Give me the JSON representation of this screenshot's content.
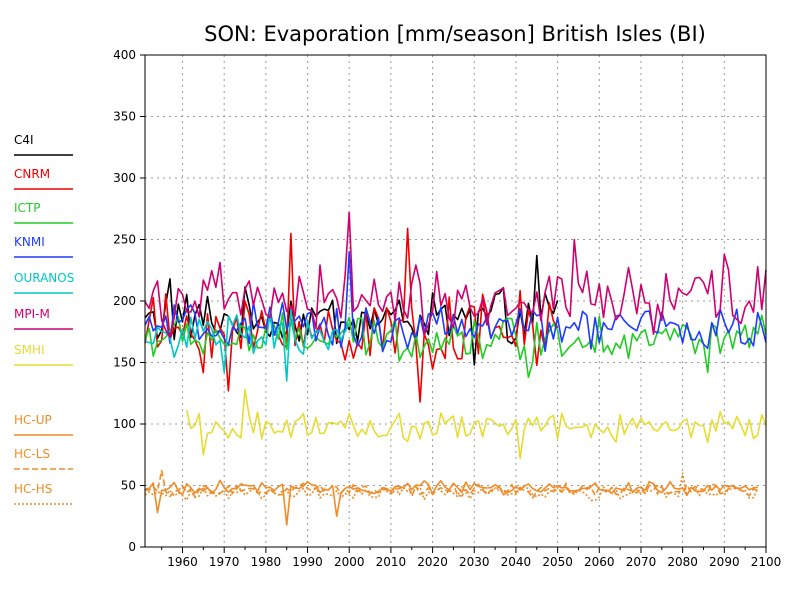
{
  "chart_data": {
    "type": "line",
    "title": "SON: Evaporation [mm/season] British Isles (BI)",
    "xlabel": "",
    "ylabel": "",
    "xlim": [
      1951,
      2100
    ],
    "ylim": [
      0,
      400
    ],
    "xticks": [
      1960,
      1970,
      1980,
      1990,
      2000,
      2010,
      2020,
      2030,
      2040,
      2050,
      2060,
      2070,
      2080,
      2090,
      2100
    ],
    "xtick_labels": [
      "1960",
      "1970",
      "1980",
      "1990",
      "2000",
      "2010",
      "2020",
      "2030",
      "2040",
      "2050",
      "2060",
      "2070",
      "2080",
      "2090",
      "2100"
    ],
    "yticks": [
      0,
      50,
      100,
      150,
      200,
      250,
      300,
      350,
      400
    ],
    "ytick_labels": [
      "0",
      "50",
      "100",
      "150",
      "200",
      "250",
      "300",
      "350",
      "400"
    ],
    "grid": true,
    "legend_position": "left",
    "series": [
      {
        "name": "C4I",
        "color": "#000000",
        "dash": "solid",
        "x_start": 1951,
        "x_end": 2050,
        "base": 185,
        "amp": 17,
        "spikes": {
          "1957": 218,
          "2030": 148,
          "2045": 237
        }
      },
      {
        "name": "CNRM",
        "color": "#ee0000",
        "dash": "solid",
        "x_start": 1951,
        "x_end": 2050,
        "base": 175,
        "amp": 22,
        "spikes": {
          "1971": 127,
          "1986": 255,
          "2017": 118,
          "2014": 259
        }
      },
      {
        "name": "ICTP",
        "color": "#22cc22",
        "dash": "solid",
        "x_start": 1951,
        "x_end": 2100,
        "base": 170,
        "amp": 14,
        "spikes": {
          "2043": 138,
          "2086": 142
        }
      },
      {
        "name": "KNMI",
        "color": "#1e3cff",
        "dash": "solid",
        "x_start": 1951,
        "x_end": 2100,
        "base": 178,
        "amp": 14,
        "spikes": {
          "2000": 240
        }
      },
      {
        "name": "OURANOS",
        "color": "#00c8c8",
        "dash": "solid",
        "x_start": 1951,
        "x_end": 2000,
        "base": 172,
        "amp": 14,
        "spikes": {
          "1985": 135,
          "1970": 142
        }
      },
      {
        "name": "MPI-M",
        "color": "#d0006f",
        "dash": "solid",
        "x_start": 1951,
        "x_end": 2100,
        "base": 200,
        "amp": 20,
        "spikes": {
          "2000": 272,
          "2054": 250,
          "2090": 238
        }
      },
      {
        "name": "SMHI",
        "color": "#e6dc32",
        "dash": "solid",
        "x_start": 1961,
        "x_end": 2100,
        "base": 98,
        "amp": 9,
        "spikes": {
          "1975": 128,
          "1965": 75,
          "2041": 72
        }
      },
      {
        "name": "HC-UP",
        "color": "#f08c28",
        "dash": "solid",
        "x_start": 1951,
        "x_end": 2098,
        "base": 48,
        "amp": 4,
        "spikes": {
          "1954": 28,
          "1985": 18,
          "1997": 25
        }
      },
      {
        "name": "HC-LS",
        "color": "#f08c28",
        "dash": "long-dash",
        "x_start": 1951,
        "x_end": 2098,
        "base": 46,
        "amp": 4,
        "spikes": {
          "1955": 62
        }
      },
      {
        "name": "HC-HS",
        "color": "#f08c28",
        "dash": "short-dash",
        "x_start": 1951,
        "x_end": 2098,
        "base": 44,
        "amp": 4,
        "spikes": {
          "2080": 60
        }
      }
    ]
  }
}
